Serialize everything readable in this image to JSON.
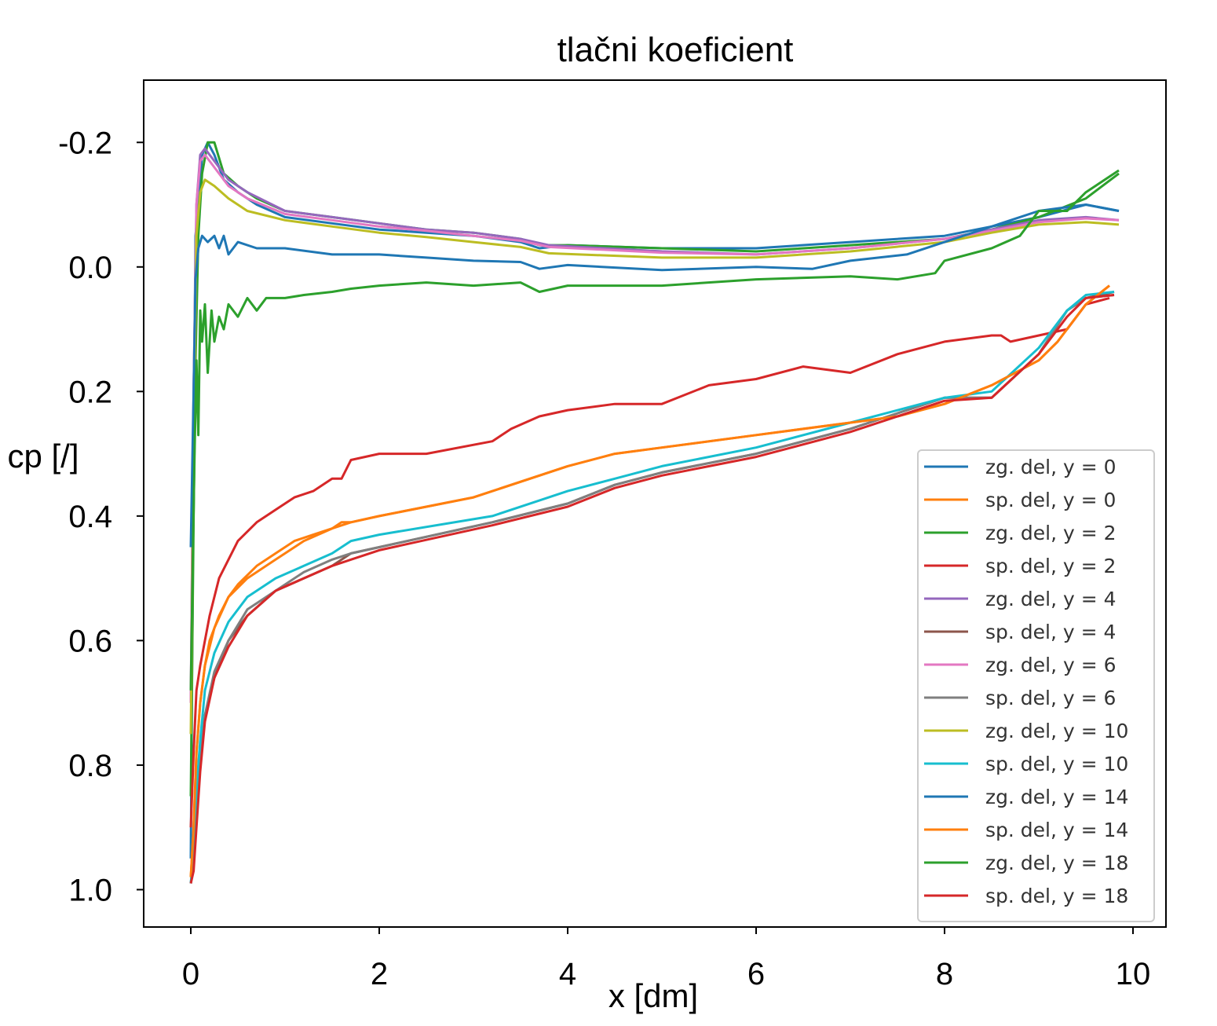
{
  "chart_data": {
    "type": "line",
    "title": "tlačni koeficient",
    "xlabel": "x [dm]",
    "ylabel": "cp [/]",
    "xlim": [
      -0.5,
      10.35
    ],
    "ylim": [
      1.06,
      -0.3
    ],
    "y_inverted": true,
    "xticks": [
      0,
      2,
      4,
      6,
      8,
      10
    ],
    "xtick_labels": [
      "0",
      "2",
      "4",
      "6",
      "8",
      "10"
    ],
    "yticks": [
      -0.2,
      0.0,
      0.2,
      0.4,
      0.6,
      0.8,
      1.0
    ],
    "ytick_labels": [
      "-0.2",
      "0.0",
      "0.2",
      "0.4",
      "0.6",
      "0.8",
      "1.0"
    ],
    "grid": false,
    "legend_position": "lower-right",
    "series": [
      {
        "name": "zg. del, y = 0",
        "color": "#1f77b4",
        "x": [
          0,
          0.03,
          0.05,
          0.08,
          0.12,
          0.18,
          0.25,
          0.35,
          0.5,
          0.7,
          1.0,
          1.5,
          2.0,
          2.5,
          3.0,
          3.5,
          3.7,
          4.0,
          5.0,
          6.0,
          7.0,
          8.0,
          8.5,
          9.0,
          9.5,
          9.85
        ],
        "y": [
          0.95,
          0.3,
          -0.05,
          -0.1,
          -0.18,
          -0.2,
          -0.18,
          -0.14,
          -0.12,
          -0.1,
          -0.08,
          -0.07,
          -0.06,
          -0.055,
          -0.05,
          -0.04,
          -0.03,
          -0.035,
          -0.03,
          -0.03,
          -0.04,
          -0.05,
          -0.065,
          -0.08,
          -0.1,
          -0.09
        ]
      },
      {
        "name": "sp. del, y = 0",
        "color": "#ff7f0e",
        "x": [
          0,
          0.03,
          0.06,
          0.1,
          0.15,
          0.25,
          0.4,
          0.6,
          0.9,
          1.2,
          1.5,
          1.7,
          2.0,
          3.0,
          4.0,
          4.5,
          5.0,
          6.0,
          7.0,
          7.5,
          8.0,
          8.5,
          9.0,
          9.2,
          9.5,
          9.75
        ],
        "y": [
          0.98,
          0.9,
          0.78,
          0.7,
          0.64,
          0.58,
          0.53,
          0.5,
          0.47,
          0.44,
          0.42,
          0.41,
          0.4,
          0.37,
          0.32,
          0.3,
          0.29,
          0.27,
          0.25,
          0.24,
          0.22,
          0.19,
          0.15,
          0.12,
          0.06,
          0.03
        ]
      },
      {
        "name": "zg. del, y = 2",
        "color": "#2ca02c",
        "x": [
          0,
          0.03,
          0.05,
          0.08,
          0.12,
          0.18,
          0.25,
          0.35,
          0.5,
          0.7,
          1.0,
          1.5,
          2.0,
          2.5,
          3.0,
          3.5,
          3.7,
          4.0,
          5.0,
          6.0,
          7.0,
          8.0,
          8.5,
          9.0,
          9.5,
          9.85
        ],
        "y": [
          0.85,
          0.4,
          0.15,
          -0.05,
          -0.15,
          -0.2,
          -0.2,
          -0.15,
          -0.13,
          -0.11,
          -0.09,
          -0.08,
          -0.07,
          -0.06,
          -0.055,
          -0.045,
          -0.035,
          -0.035,
          -0.03,
          -0.025,
          -0.035,
          -0.045,
          -0.06,
          -0.08,
          -0.11,
          -0.15
        ]
      },
      {
        "name": "sp. del, y = 2",
        "color": "#d62728",
        "x": [
          0,
          0.03,
          0.06,
          0.1,
          0.15,
          0.2,
          0.3,
          0.4,
          0.5,
          0.7,
          0.9,
          1.1,
          1.3,
          1.5,
          1.6,
          1.7,
          2.0,
          2.5,
          3.2,
          3.4,
          3.7,
          4.0,
          4.5,
          5.0,
          5.5,
          6.0,
          6.5,
          7.0,
          7.5,
          8.0,
          8.5,
          8.6,
          8.7,
          9.0,
          9.3,
          9.5,
          9.75
        ],
        "y": [
          0.9,
          0.78,
          0.68,
          0.64,
          0.6,
          0.56,
          0.5,
          0.47,
          0.44,
          0.41,
          0.39,
          0.37,
          0.36,
          0.34,
          0.34,
          0.31,
          0.3,
          0.3,
          0.28,
          0.26,
          0.24,
          0.23,
          0.22,
          0.22,
          0.19,
          0.18,
          0.16,
          0.17,
          0.14,
          0.12,
          0.11,
          0.11,
          0.12,
          0.11,
          0.1,
          0.06,
          0.05
        ]
      },
      {
        "name": "zg. del, y = 4",
        "color": "#9467bd",
        "x": [
          0,
          0.03,
          0.06,
          0.1,
          0.15,
          0.25,
          0.4,
          0.6,
          1.0,
          1.5,
          2.0,
          2.5,
          3.0,
          3.5,
          3.8,
          5.0,
          6.0,
          7.0,
          8.0,
          8.5,
          9.0,
          9.5,
          9.85
        ],
        "y": [
          0.7,
          0.2,
          -0.1,
          -0.18,
          -0.19,
          -0.17,
          -0.14,
          -0.12,
          -0.09,
          -0.08,
          -0.07,
          -0.06,
          -0.055,
          -0.045,
          -0.035,
          -0.025,
          -0.02,
          -0.03,
          -0.045,
          -0.06,
          -0.075,
          -0.08,
          -0.075
        ]
      },
      {
        "name": "sp. del, y = 4",
        "color": "#8c564b",
        "x": [
          0,
          0.03,
          0.06,
          0.1,
          0.15,
          0.25,
          0.4,
          0.6,
          0.9,
          1.2,
          1.5,
          1.7,
          2.0,
          3.2,
          4.0,
          4.5,
          5.0,
          6.0,
          7.0,
          8.0,
          8.5,
          9.0,
          9.3,
          9.5,
          9.8
        ],
        "y": [
          0.99,
          0.96,
          0.88,
          0.8,
          0.72,
          0.66,
          0.6,
          0.56,
          0.52,
          0.5,
          0.48,
          0.46,
          0.45,
          0.41,
          0.38,
          0.35,
          0.33,
          0.3,
          0.26,
          0.21,
          0.21,
          0.14,
          0.07,
          0.05,
          0.04
        ]
      },
      {
        "name": "zg. del, y = 6",
        "color": "#e377c2",
        "x": [
          0,
          0.03,
          0.06,
          0.1,
          0.15,
          0.25,
          0.4,
          0.6,
          1.0,
          1.5,
          2.0,
          2.5,
          3.0,
          3.5,
          3.8,
          5.0,
          6.0,
          7.0,
          8.0,
          8.5,
          9.0,
          9.5,
          9.85
        ],
        "y": [
          0.7,
          0.2,
          -0.1,
          -0.17,
          -0.18,
          -0.16,
          -0.13,
          -0.11,
          -0.085,
          -0.075,
          -0.065,
          -0.058,
          -0.05,
          -0.042,
          -0.032,
          -0.023,
          -0.02,
          -0.03,
          -0.045,
          -0.058,
          -0.072,
          -0.078,
          -0.075
        ]
      },
      {
        "name": "sp. del, y = 6",
        "color": "#7f7f7f",
        "x": [
          0,
          0.03,
          0.06,
          0.1,
          0.15,
          0.25,
          0.4,
          0.6,
          0.9,
          1.2,
          1.5,
          1.7,
          2.0,
          3.2,
          4.0,
          4.5,
          5.0,
          6.0,
          7.0,
          8.0,
          8.5,
          9.0,
          9.3,
          9.5,
          9.8
        ],
        "y": [
          0.99,
          0.95,
          0.87,
          0.79,
          0.72,
          0.65,
          0.6,
          0.55,
          0.52,
          0.49,
          0.47,
          0.46,
          0.45,
          0.41,
          0.38,
          0.35,
          0.33,
          0.3,
          0.26,
          0.21,
          0.21,
          0.14,
          0.07,
          0.05,
          0.045
        ]
      },
      {
        "name": "zg. del, y = 10",
        "color": "#bcbd22",
        "x": [
          0,
          0.03,
          0.06,
          0.1,
          0.15,
          0.25,
          0.4,
          0.6,
          1.0,
          1.5,
          2.0,
          2.5,
          3.0,
          3.5,
          3.8,
          5.0,
          6.0,
          7.0,
          8.0,
          8.5,
          9.0,
          9.5,
          9.85
        ],
        "y": [
          0.75,
          0.3,
          -0.05,
          -0.12,
          -0.14,
          -0.13,
          -0.11,
          -0.09,
          -0.075,
          -0.065,
          -0.055,
          -0.048,
          -0.04,
          -0.032,
          -0.022,
          -0.015,
          -0.015,
          -0.025,
          -0.04,
          -0.055,
          -0.068,
          -0.072,
          -0.068
        ]
      },
      {
        "name": "sp. del, y = 10",
        "color": "#17becf",
        "x": [
          0,
          0.03,
          0.06,
          0.1,
          0.15,
          0.25,
          0.4,
          0.6,
          0.9,
          1.2,
          1.5,
          1.7,
          2.0,
          3.2,
          4.0,
          4.5,
          5.0,
          6.0,
          7.0,
          8.0,
          8.5,
          9.0,
          9.3,
          9.5,
          9.8
        ],
        "y": [
          0.99,
          0.94,
          0.84,
          0.76,
          0.68,
          0.62,
          0.57,
          0.53,
          0.5,
          0.48,
          0.46,
          0.44,
          0.43,
          0.4,
          0.36,
          0.34,
          0.32,
          0.29,
          0.25,
          0.21,
          0.2,
          0.13,
          0.07,
          0.045,
          0.04
        ]
      },
      {
        "name": "zg. del, y = 14",
        "color": "#1f77b4",
        "x": [
          0,
          0.03,
          0.05,
          0.08,
          0.12,
          0.18,
          0.25,
          0.3,
          0.35,
          0.4,
          0.5,
          0.7,
          1.0,
          1.5,
          2.0,
          2.5,
          3.0,
          3.5,
          3.7,
          4.0,
          5.0,
          6.0,
          6.6,
          7.0,
          7.6,
          8.0,
          8.5,
          9.0,
          9.5,
          9.85
        ],
        "y": [
          0.45,
          0.2,
          0.02,
          -0.03,
          -0.05,
          -0.04,
          -0.05,
          -0.03,
          -0.05,
          -0.02,
          -0.04,
          -0.03,
          -0.03,
          -0.02,
          -0.02,
          -0.015,
          -0.01,
          -0.008,
          0.003,
          -0.003,
          0.005,
          0.0,
          0.003,
          -0.01,
          -0.02,
          -0.04,
          -0.065,
          -0.09,
          -0.1,
          -0.09
        ]
      },
      {
        "name": "sp. del, y = 14",
        "color": "#ff7f0e",
        "x": [
          0,
          0.03,
          0.06,
          0.1,
          0.15,
          0.2,
          0.3,
          0.4,
          0.5,
          0.7,
          0.9,
          1.1,
          1.3,
          1.5,
          1.6,
          1.7,
          2.0,
          3.0,
          4.0,
          4.5,
          5.0,
          6.0,
          7.0,
          7.5,
          8.0,
          8.5,
          9.0,
          9.2,
          9.5,
          9.75
        ],
        "y": [
          0.98,
          0.9,
          0.78,
          0.7,
          0.64,
          0.6,
          0.56,
          0.53,
          0.51,
          0.48,
          0.46,
          0.44,
          0.43,
          0.42,
          0.41,
          0.41,
          0.4,
          0.37,
          0.32,
          0.3,
          0.29,
          0.27,
          0.25,
          0.24,
          0.22,
          0.19,
          0.15,
          0.12,
          0.06,
          0.03
        ]
      },
      {
        "name": "zg. del, y = 18",
        "color": "#2ca02c",
        "x": [
          0,
          0.02,
          0.04,
          0.06,
          0.08,
          0.1,
          0.12,
          0.15,
          0.18,
          0.22,
          0.25,
          0.3,
          0.35,
          0.4,
          0.5,
          0.6,
          0.7,
          0.8,
          1.0,
          1.2,
          1.5,
          1.7,
          2.0,
          2.5,
          3.0,
          3.5,
          3.7,
          4.0,
          5.0,
          6.0,
          7.0,
          7.5,
          7.9,
          8.0,
          8.5,
          8.8,
          9.0,
          9.3,
          9.5,
          9.85
        ],
        "y": [
          0.68,
          0.48,
          0.3,
          0.15,
          0.27,
          0.07,
          0.12,
          0.06,
          0.17,
          0.07,
          0.12,
          0.08,
          0.1,
          0.06,
          0.08,
          0.05,
          0.07,
          0.05,
          0.05,
          0.045,
          0.04,
          0.035,
          0.03,
          0.025,
          0.03,
          0.025,
          0.04,
          0.03,
          0.03,
          0.02,
          0.015,
          0.02,
          0.01,
          -0.01,
          -0.03,
          -0.05,
          -0.09,
          -0.09,
          -0.12,
          -0.155
        ]
      },
      {
        "name": "sp. del, y = 18",
        "color": "#d62728",
        "x": [
          0,
          0.03,
          0.06,
          0.1,
          0.15,
          0.25,
          0.4,
          0.6,
          0.9,
          1.2,
          1.5,
          1.7,
          2.0,
          3.2,
          4.0,
          4.5,
          5.0,
          6.0,
          7.0,
          8.0,
          8.5,
          9.0,
          9.3,
          9.5,
          9.8
        ],
        "y": [
          0.99,
          0.97,
          0.9,
          0.81,
          0.73,
          0.66,
          0.61,
          0.56,
          0.52,
          0.5,
          0.48,
          0.47,
          0.455,
          0.415,
          0.385,
          0.355,
          0.335,
          0.305,
          0.265,
          0.215,
          0.21,
          0.14,
          0.08,
          0.05,
          0.045
        ]
      }
    ]
  }
}
